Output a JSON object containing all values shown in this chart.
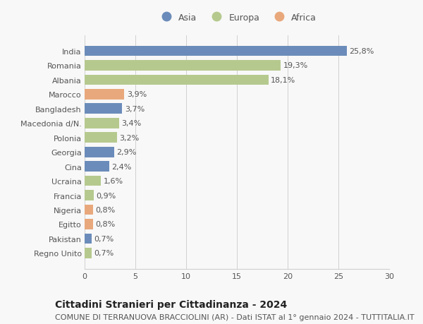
{
  "countries": [
    "India",
    "Romania",
    "Albania",
    "Marocco",
    "Bangladesh",
    "Macedonia d/N.",
    "Polonia",
    "Georgia",
    "Cina",
    "Ucraina",
    "Francia",
    "Nigeria",
    "Egitto",
    "Pakistan",
    "Regno Unito"
  ],
  "values": [
    25.8,
    19.3,
    18.1,
    3.9,
    3.7,
    3.4,
    3.2,
    2.9,
    2.4,
    1.6,
    0.9,
    0.8,
    0.8,
    0.7,
    0.7
  ],
  "labels": [
    "25,8%",
    "19,3%",
    "18,1%",
    "3,9%",
    "3,7%",
    "3,4%",
    "3,2%",
    "2,9%",
    "2,4%",
    "1,6%",
    "0,9%",
    "0,8%",
    "0,8%",
    "0,7%",
    "0,7%"
  ],
  "continents": [
    "Asia",
    "Europa",
    "Europa",
    "Africa",
    "Asia",
    "Europa",
    "Europa",
    "Asia",
    "Asia",
    "Europa",
    "Europa",
    "Africa",
    "Africa",
    "Asia",
    "Europa"
  ],
  "colors": {
    "Asia": "#6b8cba",
    "Europa": "#b5c98e",
    "Africa": "#e8a87c"
  },
  "legend_order": [
    "Asia",
    "Europa",
    "Africa"
  ],
  "xlim": [
    0,
    30
  ],
  "xticks": [
    0,
    5,
    10,
    15,
    20,
    25,
    30
  ],
  "title": "Cittadini Stranieri per Cittadinanza - 2024",
  "subtitle": "COMUNE DI TERRANUOVA BRACCIOLINI (AR) - Dati ISTAT al 1° gennaio 2024 - TUTTITALIA.IT",
  "background_color": "#f8f8f8",
  "grid_color": "#d0d0d0",
  "bar_height": 0.72,
  "title_fontsize": 10,
  "subtitle_fontsize": 8,
  "tick_fontsize": 8,
  "label_fontsize": 8,
  "legend_fontsize": 9
}
